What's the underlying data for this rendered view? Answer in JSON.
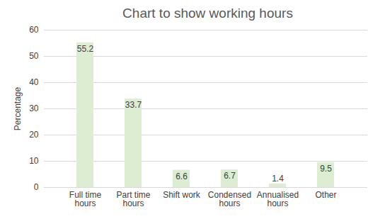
{
  "chart_data": {
    "type": "bar",
    "title": "Chart to show working hours",
    "y_label": "Percentage",
    "categories": [
      "Full time\nhours",
      "Part time\nhours",
      "Shift work",
      "Condensed\nhours",
      "Annualised\nhours",
      "Other"
    ],
    "values": [
      55.2,
      33.7,
      6.6,
      6.7,
      1.4,
      9.5
    ],
    "color": "#dcedd2",
    "ylim": [
      0,
      60
    ],
    "yticks": [
      0,
      10,
      20,
      30,
      40,
      50,
      60
    ],
    "grid": true,
    "data_labels": true
  }
}
